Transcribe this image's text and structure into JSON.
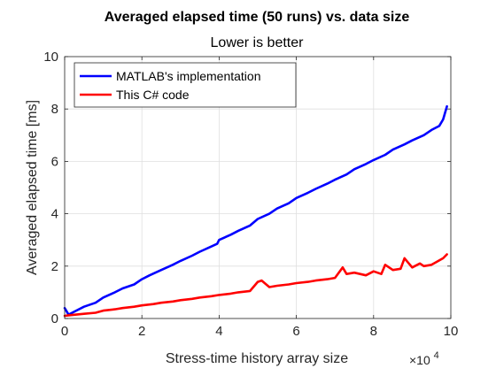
{
  "chart_data": {
    "type": "line",
    "title": "Averaged elapsed time (50 runs) vs. data size",
    "subtitle": "Lower is better",
    "xlabel": "Stress-time history array size",
    "ylabel": "Averaged elapsed time [ms]",
    "x_exponent_label": "×10",
    "x_exponent_power": "4",
    "xlim": [
      0,
      10
    ],
    "ylim": [
      0,
      10
    ],
    "xticks": [
      0,
      2,
      4,
      6,
      8,
      10
    ],
    "yticks": [
      0,
      2,
      4,
      6,
      8,
      10
    ],
    "grid": true,
    "legend_position": "top-left",
    "series": [
      {
        "name": "MATLAB's implementation",
        "color": "#0000ff",
        "x": [
          0,
          0.1,
          0.3,
          0.5,
          0.8,
          1.0,
          1.3,
          1.5,
          1.8,
          2.0,
          2.2,
          2.5,
          2.8,
          3.0,
          3.3,
          3.5,
          3.8,
          3.95,
          4.0,
          4.3,
          4.5,
          4.8,
          5.0,
          5.3,
          5.5,
          5.8,
          6.0,
          6.3,
          6.5,
          6.8,
          7.0,
          7.3,
          7.5,
          7.8,
          8.0,
          8.3,
          8.5,
          8.8,
          9.0,
          9.3,
          9.5,
          9.7,
          9.8,
          9.9
        ],
        "y": [
          0.4,
          0.15,
          0.3,
          0.45,
          0.6,
          0.8,
          1.0,
          1.15,
          1.3,
          1.5,
          1.65,
          1.85,
          2.05,
          2.2,
          2.4,
          2.55,
          2.75,
          2.85,
          3.0,
          3.2,
          3.35,
          3.55,
          3.8,
          4.0,
          4.2,
          4.4,
          4.6,
          4.8,
          4.95,
          5.15,
          5.3,
          5.5,
          5.7,
          5.9,
          6.05,
          6.25,
          6.45,
          6.65,
          6.8,
          7.0,
          7.2,
          7.35,
          7.6,
          8.1
        ]
      },
      {
        "name": "This C# code",
        "color": "#ff0000",
        "x": [
          0,
          0.1,
          0.3,
          0.5,
          0.8,
          1.0,
          1.3,
          1.5,
          1.8,
          2.0,
          2.3,
          2.5,
          2.8,
          3.0,
          3.3,
          3.5,
          3.8,
          4.0,
          4.3,
          4.5,
          4.8,
          5.0,
          5.1,
          5.3,
          5.5,
          5.8,
          6.0,
          6.3,
          6.5,
          6.8,
          7.0,
          7.2,
          7.3,
          7.5,
          7.8,
          8.0,
          8.2,
          8.3,
          8.5,
          8.7,
          8.8,
          9.0,
          9.2,
          9.3,
          9.5,
          9.8,
          9.9
        ],
        "y": [
          0.1,
          0.12,
          0.15,
          0.18,
          0.22,
          0.3,
          0.35,
          0.4,
          0.45,
          0.5,
          0.55,
          0.6,
          0.65,
          0.7,
          0.75,
          0.8,
          0.85,
          0.9,
          0.95,
          1.0,
          1.05,
          1.4,
          1.45,
          1.2,
          1.25,
          1.3,
          1.35,
          1.4,
          1.45,
          1.5,
          1.55,
          1.95,
          1.7,
          1.75,
          1.65,
          1.8,
          1.7,
          2.05,
          1.85,
          1.9,
          2.3,
          1.95,
          2.1,
          2.0,
          2.05,
          2.3,
          2.45
        ]
      }
    ]
  }
}
